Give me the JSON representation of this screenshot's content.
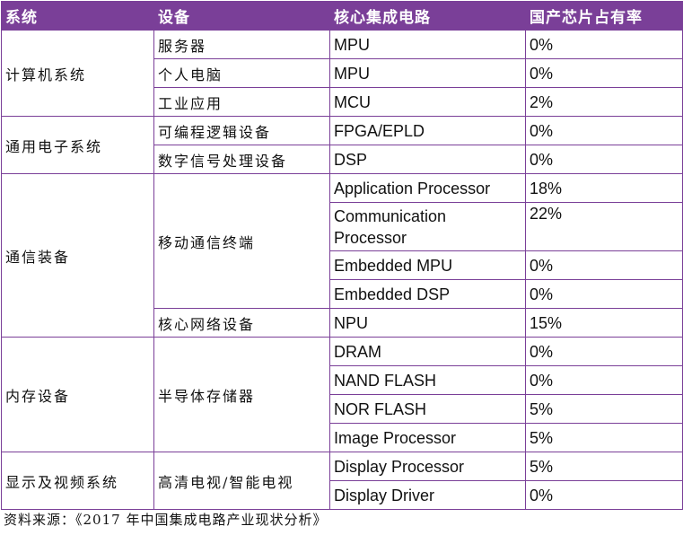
{
  "headers": [
    "系统",
    "设备",
    "核心集成电路",
    "国产芯片占有率"
  ],
  "systems": {
    "computer": "计算机系统",
    "general_electronics": "通用电子系统",
    "communication": "通信装备",
    "memory": "内存设备",
    "display": "显示及视频系统"
  },
  "devices": {
    "server": "服务器",
    "pc": "个人电脑",
    "industrial": "工业应用",
    "programmable_logic": "可编程逻辑设备",
    "dsp_device": "数字信号处理设备",
    "mobile_terminal": "移动通信终端",
    "core_network": "核心网络设备",
    "semiconductor_storage": "半导体存储器",
    "hd_tv": "高清电视/智能电视"
  },
  "rows": [
    {
      "ic": "MPU",
      "share": "0%"
    },
    {
      "ic": "MPU",
      "share": "0%"
    },
    {
      "ic": "MCU",
      "share": "2%"
    },
    {
      "ic": "FPGA/EPLD",
      "share": "0%"
    },
    {
      "ic": "DSP",
      "share": "0%"
    },
    {
      "ic": "Application Processor",
      "share": "18%"
    },
    {
      "ic": "Communication Processor",
      "share": "22%"
    },
    {
      "ic": "Embedded MPU",
      "share": "0%"
    },
    {
      "ic": "Embedded DSP",
      "share": "0%"
    },
    {
      "ic": "NPU",
      "share": "15%"
    },
    {
      "ic": "DRAM",
      "share": "0%"
    },
    {
      "ic": "NAND FLASH",
      "share": "0%"
    },
    {
      "ic": "NOR FLASH",
      "share": "5%"
    },
    {
      "ic": "Image Processor",
      "share": "5%"
    },
    {
      "ic": "Display Processor",
      "share": "5%"
    },
    {
      "ic": "Display Driver",
      "share": "0%"
    }
  ],
  "source_note": "资料来源：《2017 年中国集成电路产业现状分析》",
  "colors": {
    "header_bg": "#7a3f98",
    "header_text": "#ffffff",
    "border": "#7a3f98"
  }
}
